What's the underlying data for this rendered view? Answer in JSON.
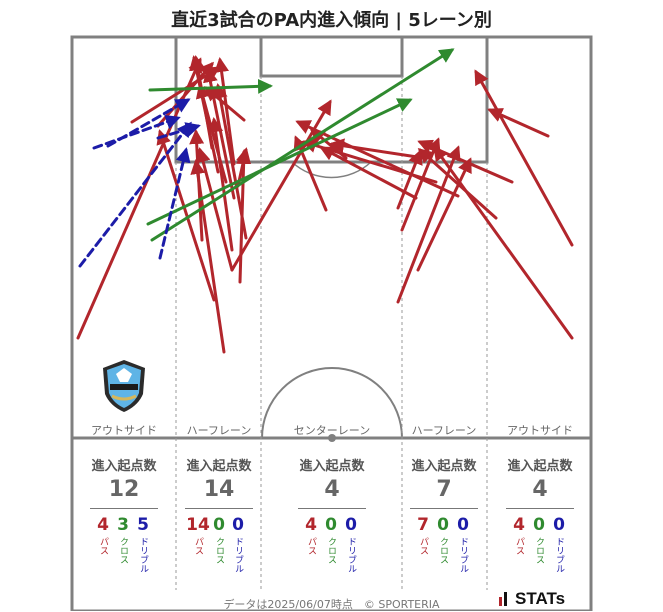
{
  "title": "直近3試合のPA内進入傾向 | 5レーン別",
  "lanes": [
    {
      "name": "アウトサイド",
      "head": "進入起点数",
      "total": "12",
      "pass": "4",
      "cross": "3",
      "dribble": "5"
    },
    {
      "name": "ハーフレーン",
      "head": "進入起点数",
      "total": "14",
      "pass": "14",
      "cross": "0",
      "dribble": "0"
    },
    {
      "name": "センターレーン",
      "head": "進入起点数",
      "total": "4",
      "pass": "4",
      "cross": "0",
      "dribble": "0"
    },
    {
      "name": "ハーフレーン",
      "head": "進入起点数",
      "total": "7",
      "pass": "7",
      "cross": "0",
      "dribble": "0"
    },
    {
      "name": "アウトサイド",
      "head": "進入起点数",
      "total": "4",
      "pass": "4",
      "cross": "0",
      "dribble": "0"
    }
  ],
  "labels": {
    "pass": "パス",
    "cross": "クロス",
    "dribble": "ドリブル"
  },
  "footer": "データは2025/06/07時点　© SPORTERIA",
  "brand": "STATs",
  "colors": {
    "pass": "#b2262c",
    "cross": "#2f8a2f",
    "dribble": "#1c1ca8",
    "pitch_line": "#808080"
  },
  "chart_data": {
    "type": "arrow-map",
    "arrows": {
      "pass": [
        [
          78,
          338,
          200,
          60
        ],
        [
          232,
          270,
          330,
          102
        ],
        [
          572,
          338,
          435,
          148
        ],
        [
          572,
          245,
          476,
          72
        ],
        [
          548,
          136,
          490,
          110
        ],
        [
          398,
          302,
          458,
          148
        ],
        [
          418,
          270,
          470,
          160
        ],
        [
          402,
          230,
          438,
          140
        ],
        [
          512,
          182,
          420,
          142
        ],
        [
          496,
          218,
          420,
          150
        ],
        [
          458,
          196,
          298,
          122
        ],
        [
          436,
          182,
          304,
          142
        ],
        [
          424,
          158,
          332,
          144
        ],
        [
          416,
          198,
          322,
          148
        ],
        [
          346,
          158,
          312,
          130
        ],
        [
          398,
          208,
          420,
          152
        ],
        [
          326,
          210,
          296,
          138
        ],
        [
          240,
          282,
          244,
          152
        ],
        [
          224,
          352,
          196,
          162
        ],
        [
          232,
          270,
          200,
          150
        ],
        [
          232,
          250,
          214,
          120
        ],
        [
          214,
          300,
          160,
          132
        ],
        [
          202,
          240,
          196,
          132
        ],
        [
          246,
          238,
          218,
          86
        ],
        [
          234,
          198,
          208,
          70
        ],
        [
          226,
          182,
          200,
          86
        ],
        [
          218,
          172,
          194,
          58
        ],
        [
          212,
          148,
          196,
          58
        ],
        [
          244,
          120,
          206,
          88
        ],
        [
          234,
          164,
          220,
          60
        ],
        [
          132,
          122,
          218,
          68
        ],
        [
          158,
          126,
          212,
          64
        ],
        [
          238,
          186,
          246,
          150
        ]
      ],
      "cross": [
        [
          148,
          224,
          410,
          100
        ],
        [
          152,
          240,
          452,
          50
        ],
        [
          150,
          90,
          270,
          86
        ]
      ],
      "dribble": [
        [
          80,
          266,
          190,
          124
        ],
        [
          160,
          258,
          186,
          150
        ],
        [
          94,
          148,
          178,
          118
        ],
        [
          108,
          146,
          188,
          100
        ],
        [
          158,
          138,
          198,
          126
        ]
      ]
    }
  }
}
